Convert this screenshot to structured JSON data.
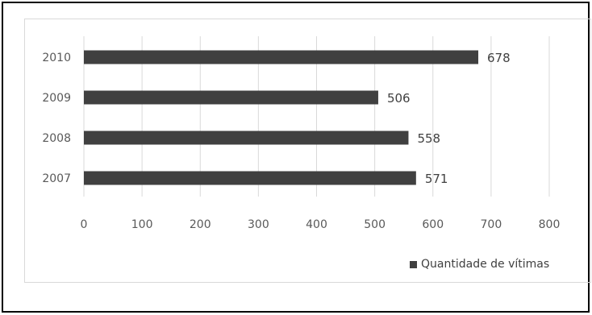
{
  "chart_data": {
    "type": "bar",
    "orientation": "horizontal",
    "categories": [
      "2010",
      "2009",
      "2008",
      "2007"
    ],
    "series": [
      {
        "name": "Quantidade de vítimas",
        "values": [
          678,
          506,
          558,
          571
        ],
        "color": "#404040"
      }
    ],
    "x_ticks": [
      "0",
      "100",
      "200",
      "300",
      "400",
      "500",
      "600",
      "700",
      "800"
    ],
    "xlim": [
      0,
      800
    ],
    "grid": "vertical",
    "legend_position": "bottom-right",
    "data_labels": [
      "678",
      "506",
      "558",
      "571"
    ]
  },
  "colors": {
    "bar": "#404040",
    "grid": "#d9d9d9",
    "tick_text": "#595959",
    "label_text": "#404040"
  }
}
